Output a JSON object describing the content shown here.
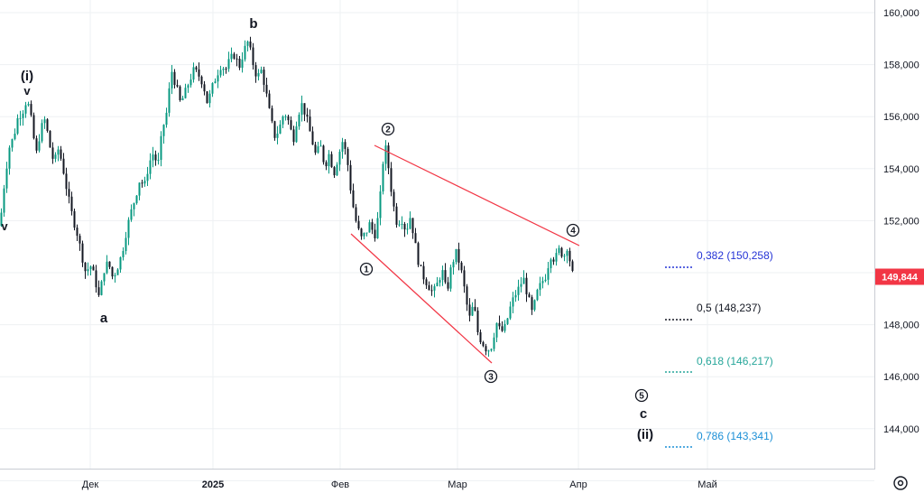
{
  "chart_data": {
    "type": "candlestick",
    "x_axis": {
      "tick_labels": [
        "Дек",
        "2025",
        "Фев",
        "Мар",
        "Апр",
        "Май"
      ]
    },
    "y_axis": {
      "tick_labels": [
        "160,000",
        "158,000",
        "156,000",
        "154,000",
        "152,000",
        "148,000",
        "146,000",
        "144,000"
      ],
      "tick_values": [
        160000,
        158000,
        156000,
        154000,
        152000,
        148000,
        146000,
        144000
      ],
      "range": [
        142000,
        160500
      ]
    },
    "current_price": {
      "label": "149,844",
      "value": 149844,
      "color": "#f23645"
    },
    "price_path": [
      [
        0,
        151800
      ],
      [
        5,
        153500
      ],
      [
        10,
        154800
      ],
      [
        15,
        155200
      ],
      [
        20,
        156000
      ],
      [
        25,
        156200
      ],
      [
        30,
        156700
      ],
      [
        35,
        155800
      ],
      [
        40,
        154500
      ],
      [
        45,
        155500
      ],
      [
        50,
        155900
      ],
      [
        55,
        154900
      ],
      [
        60,
        154200
      ],
      [
        65,
        154800
      ],
      [
        70,
        154000
      ],
      [
        75,
        153000
      ],
      [
        80,
        152200
      ],
      [
        85,
        151600
      ],
      [
        90,
        150800
      ],
      [
        95,
        150000
      ],
      [
        100,
        150300
      ],
      [
        105,
        149800
      ],
      [
        110,
        149000
      ],
      [
        115,
        150100
      ],
      [
        120,
        150400
      ],
      [
        125,
        149800
      ],
      [
        130,
        150200
      ],
      [
        135,
        150700
      ],
      [
        140,
        151600
      ],
      [
        145,
        152300
      ],
      [
        150,
        152900
      ],
      [
        155,
        153600
      ],
      [
        160,
        153300
      ],
      [
        165,
        154200
      ],
      [
        170,
        154600
      ],
      [
        175,
        154100
      ],
      [
        180,
        155500
      ],
      [
        185,
        156200
      ],
      [
        190,
        157800
      ],
      [
        195,
        157200
      ],
      [
        200,
        156500
      ],
      [
        205,
        156900
      ],
      [
        210,
        157400
      ],
      [
        215,
        157800
      ],
      [
        220,
        157600
      ],
      [
        225,
        157300
      ],
      [
        230,
        156500
      ],
      [
        235,
        157100
      ],
      [
        240,
        157600
      ],
      [
        245,
        158000
      ],
      [
        250,
        157800
      ],
      [
        255,
        158200
      ],
      [
        260,
        158400
      ],
      [
        265,
        157900
      ],
      [
        270,
        158500
      ],
      [
        275,
        158900
      ],
      [
        280,
        158100
      ],
      [
        285,
        157500
      ],
      [
        290,
        157800
      ],
      [
        295,
        156900
      ],
      [
        300,
        155900
      ],
      [
        305,
        155200
      ],
      [
        310,
        155600
      ],
      [
        315,
        156200
      ],
      [
        320,
        155800
      ],
      [
        325,
        155100
      ],
      [
        330,
        156100
      ],
      [
        335,
        156500
      ],
      [
        340,
        155900
      ],
      [
        345,
        155200
      ],
      [
        350,
        154500
      ],
      [
        355,
        154900
      ],
      [
        360,
        154100
      ],
      [
        365,
        154600
      ],
      [
        370,
        153800
      ],
      [
        375,
        154500
      ],
      [
        380,
        155100
      ],
      [
        385,
        154300
      ],
      [
        390,
        152800
      ],
      [
        395,
        151900
      ],
      [
        400,
        151300
      ],
      [
        405,
        151500
      ],
      [
        410,
        151900
      ],
      [
        415,
        151400
      ],
      [
        420,
        152300
      ],
      [
        425,
        154500
      ],
      [
        428,
        154800
      ],
      [
        432,
        153600
      ],
      [
        436,
        152600
      ],
      [
        440,
        151900
      ],
      [
        445,
        152100
      ],
      [
        450,
        151600
      ],
      [
        455,
        152200
      ],
      [
        460,
        151100
      ],
      [
        465,
        150200
      ],
      [
        470,
        149800
      ],
      [
        475,
        149500
      ],
      [
        480,
        149200
      ],
      [
        485,
        149600
      ],
      [
        490,
        150100
      ],
      [
        495,
        149200
      ],
      [
        500,
        150200
      ],
      [
        505,
        150800
      ],
      [
        510,
        150300
      ],
      [
        515,
        149300
      ],
      [
        520,
        148200
      ],
      [
        525,
        148800
      ],
      [
        530,
        147600
      ],
      [
        535,
        147300
      ],
      [
        540,
        147000
      ],
      [
        545,
        147200
      ],
      [
        550,
        148100
      ],
      [
        555,
        147700
      ],
      [
        560,
        147900
      ],
      [
        565,
        148600
      ],
      [
        570,
        149100
      ],
      [
        575,
        149400
      ],
      [
        580,
        149800
      ],
      [
        585,
        149100
      ],
      [
        590,
        148400
      ],
      [
        595,
        149200
      ],
      [
        600,
        149600
      ],
      [
        605,
        149900
      ],
      [
        610,
        150700
      ],
      [
        615,
        150500
      ],
      [
        620,
        150900
      ],
      [
        625,
        150600
      ],
      [
        628,
        151100
      ],
      [
        632,
        150400
      ],
      [
        635,
        149844
      ]
    ],
    "overlays": {
      "wave_labels": [
        "(i)",
        "v",
        "v",
        "a",
        "b",
        "c",
        "(ii)"
      ],
      "circled_labels": [
        "1",
        "2",
        "3",
        "4",
        "5"
      ]
    },
    "fibonacci_levels": [
      {
        "label": "0,382 (150,258)",
        "value": 150258,
        "color": "#2433d6"
      },
      {
        "label": "0,5 (148,237)",
        "value": 148237,
        "color": "#131722"
      },
      {
        "label": "0,618 (146,217)",
        "value": 146217,
        "color": "#26a69a"
      },
      {
        "label": "0,786 (143,341)",
        "value": 143341,
        "color": "#1b8fd6"
      }
    ],
    "colors": {
      "up": "#089981",
      "down": "#131722",
      "trendline": "#f23645",
      "grid": "#eef0f3"
    }
  },
  "toolbar": {
    "settings_icon": "settings-icon"
  }
}
